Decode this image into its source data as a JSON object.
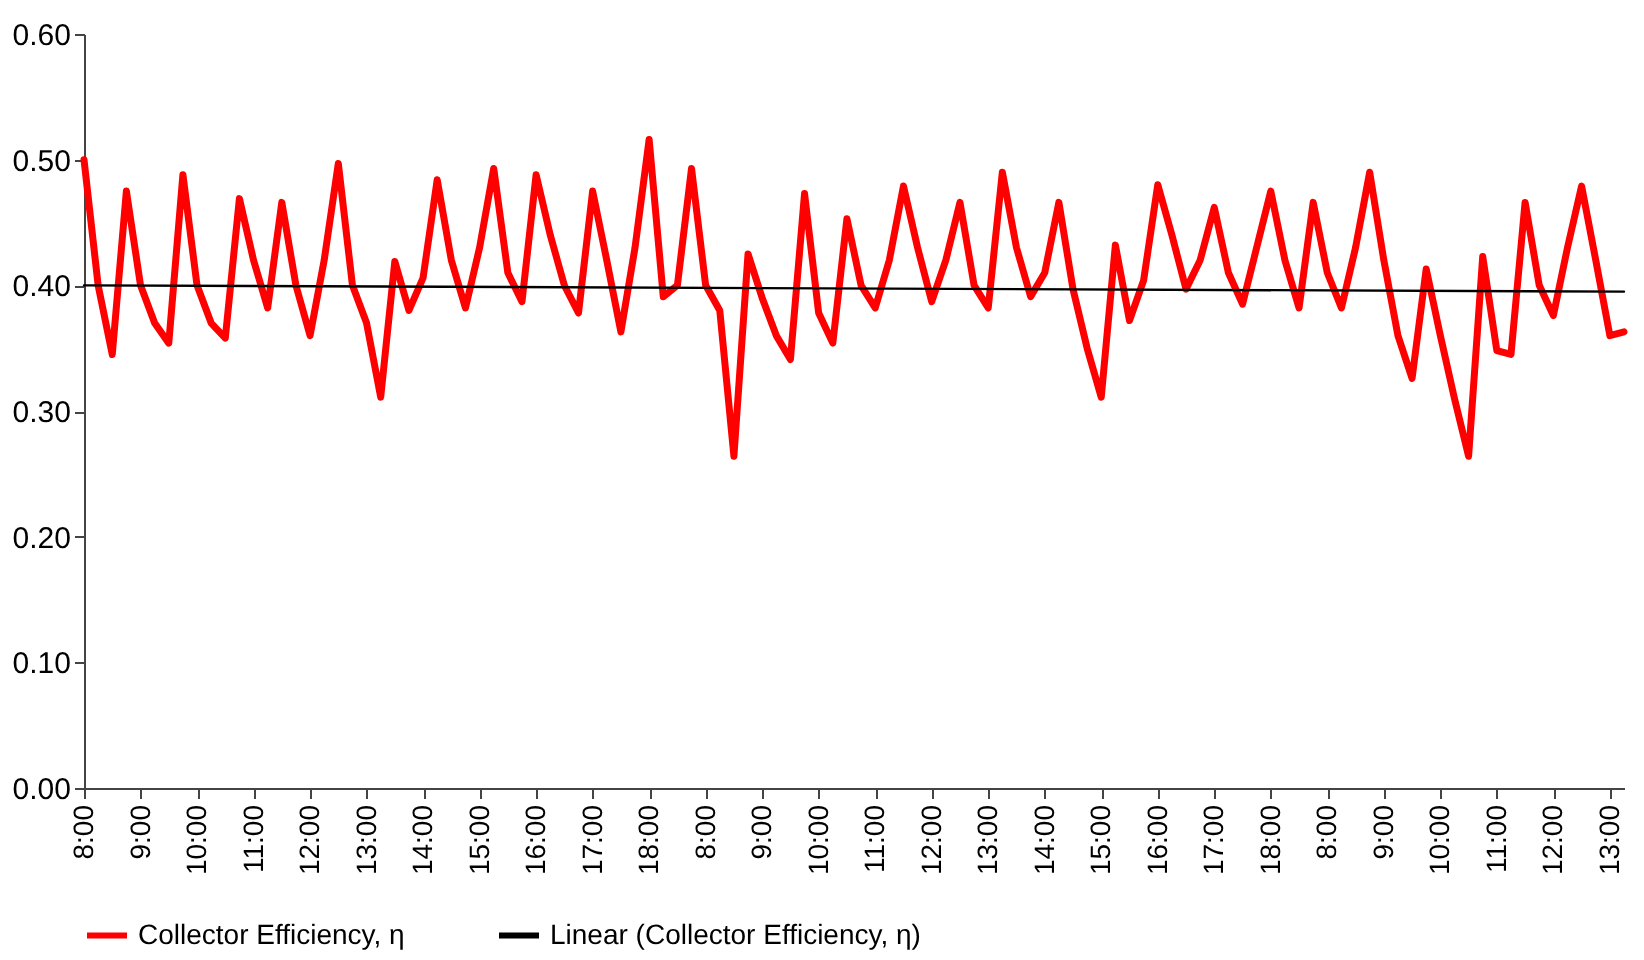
{
  "chart_data": {
    "type": "line",
    "legend": "bottom",
    "grid": false,
    "categories": [
      "8:00",
      null,
      null,
      null,
      "9:00",
      null,
      null,
      null,
      "10:00",
      null,
      null,
      null,
      "11:00",
      null,
      null,
      null,
      "12:00",
      null,
      null,
      null,
      "13:00",
      null,
      null,
      null,
      "14:00",
      null,
      null,
      null,
      "15:00",
      null,
      null,
      null,
      "16:00",
      null,
      null,
      null,
      "17:00",
      null,
      null,
      null,
      "18:00",
      null,
      null,
      null,
      "8:00",
      null,
      null,
      null,
      "9:00",
      null,
      null,
      null,
      "10:00",
      null,
      null,
      null,
      "11:00",
      null,
      null,
      null,
      "12:00",
      null,
      null,
      null,
      "13:00",
      null,
      null,
      null,
      "14:00",
      null,
      null,
      null,
      "15:00",
      null,
      null,
      null,
      "16:00",
      null,
      null,
      null,
      "17:00",
      null,
      null,
      null,
      "18:00",
      null,
      null,
      null,
      "8:00",
      null,
      null,
      null,
      "9:00",
      null,
      null,
      null,
      "10:00",
      null,
      null,
      null,
      "11:00",
      null,
      null,
      null,
      "12:00",
      null,
      null,
      null,
      "13:00",
      null
    ],
    "ylim": [
      0,
      0.6
    ],
    "yticks": [
      {
        "value": 0,
        "label": "0.00"
      },
      {
        "value": 0.1,
        "label": "0.10"
      },
      {
        "value": 0.2,
        "label": "0.20"
      },
      {
        "value": 0.3,
        "label": "0.30"
      },
      {
        "value": 0.4,
        "label": "0.40"
      },
      {
        "value": 0.5,
        "label": "0.50"
      },
      {
        "value": 0.6,
        "label": "0.60"
      }
    ],
    "series": [
      {
        "name": "Collector Efficiency, η",
        "color": "#ff0000",
        "values": [
          0.5,
          0.4,
          0.345,
          0.475,
          0.4,
          0.37,
          0.354,
          0.488,
          0.4,
          0.37,
          0.358,
          0.469,
          0.42,
          0.382,
          0.466,
          0.4,
          0.36,
          0.42,
          0.497,
          0.4,
          0.37,
          0.311,
          0.419,
          0.38,
          0.406,
          0.484,
          0.42,
          0.382,
          0.43,
          0.493,
          0.41,
          0.387,
          0.488,
          0.44,
          0.4,
          0.378,
          0.475,
          0.42,
          0.363,
          0.43,
          0.516,
          0.391,
          0.4,
          0.493,
          0.4,
          0.38,
          0.264,
          0.425,
          0.39,
          0.36,
          0.341,
          0.473,
          0.378,
          0.354,
          0.453,
          0.4,
          0.382,
          0.42,
          0.479,
          0.43,
          0.387,
          0.42,
          0.466,
          0.4,
          0.382,
          0.49,
          0.43,
          0.391,
          0.41,
          0.466,
          0.397,
          0.35,
          0.311,
          0.432,
          0.372,
          0.404,
          0.48,
          0.44,
          0.397,
          0.42,
          0.462,
          0.41,
          0.385,
          0.43,
          0.475,
          0.42,
          0.382,
          0.466,
          0.41,
          0.382,
          0.43,
          0.49,
          0.42,
          0.36,
          0.326,
          0.413,
          0.36,
          0.31,
          0.264,
          0.423,
          0.348,
          0.345,
          0.466,
          0.4,
          0.376,
          0.43,
          0.479,
          0.42,
          0.36,
          0.363
        ]
      },
      {
        "name": "Linear (Collector Efficiency, η)",
        "color": "#000000",
        "type": "line",
        "values": [
          0.4,
          null,
          null,
          null,
          null,
          null,
          null,
          null,
          null,
          null,
          null,
          null,
          null,
          null,
          null,
          null,
          null,
          null,
          null,
          null,
          null,
          null,
          null,
          null,
          null,
          null,
          null,
          null,
          null,
          null,
          null,
          null,
          null,
          null,
          null,
          null,
          null,
          null,
          null,
          null,
          null,
          null,
          null,
          null,
          null,
          null,
          null,
          null,
          null,
          null,
          null,
          null,
          null,
          null,
          null,
          null,
          null,
          null,
          null,
          null,
          null,
          null,
          null,
          null,
          null,
          null,
          null,
          null,
          null,
          null,
          null,
          null,
          null,
          null,
          null,
          null,
          null,
          null,
          null,
          null,
          null,
          null,
          null,
          null,
          null,
          null,
          null,
          null,
          null,
          null,
          null,
          null,
          null,
          null,
          null,
          null,
          null,
          null,
          null,
          null,
          null,
          null,
          null,
          null,
          null,
          null,
          null,
          null,
          null,
          0.395
        ]
      }
    ]
  }
}
